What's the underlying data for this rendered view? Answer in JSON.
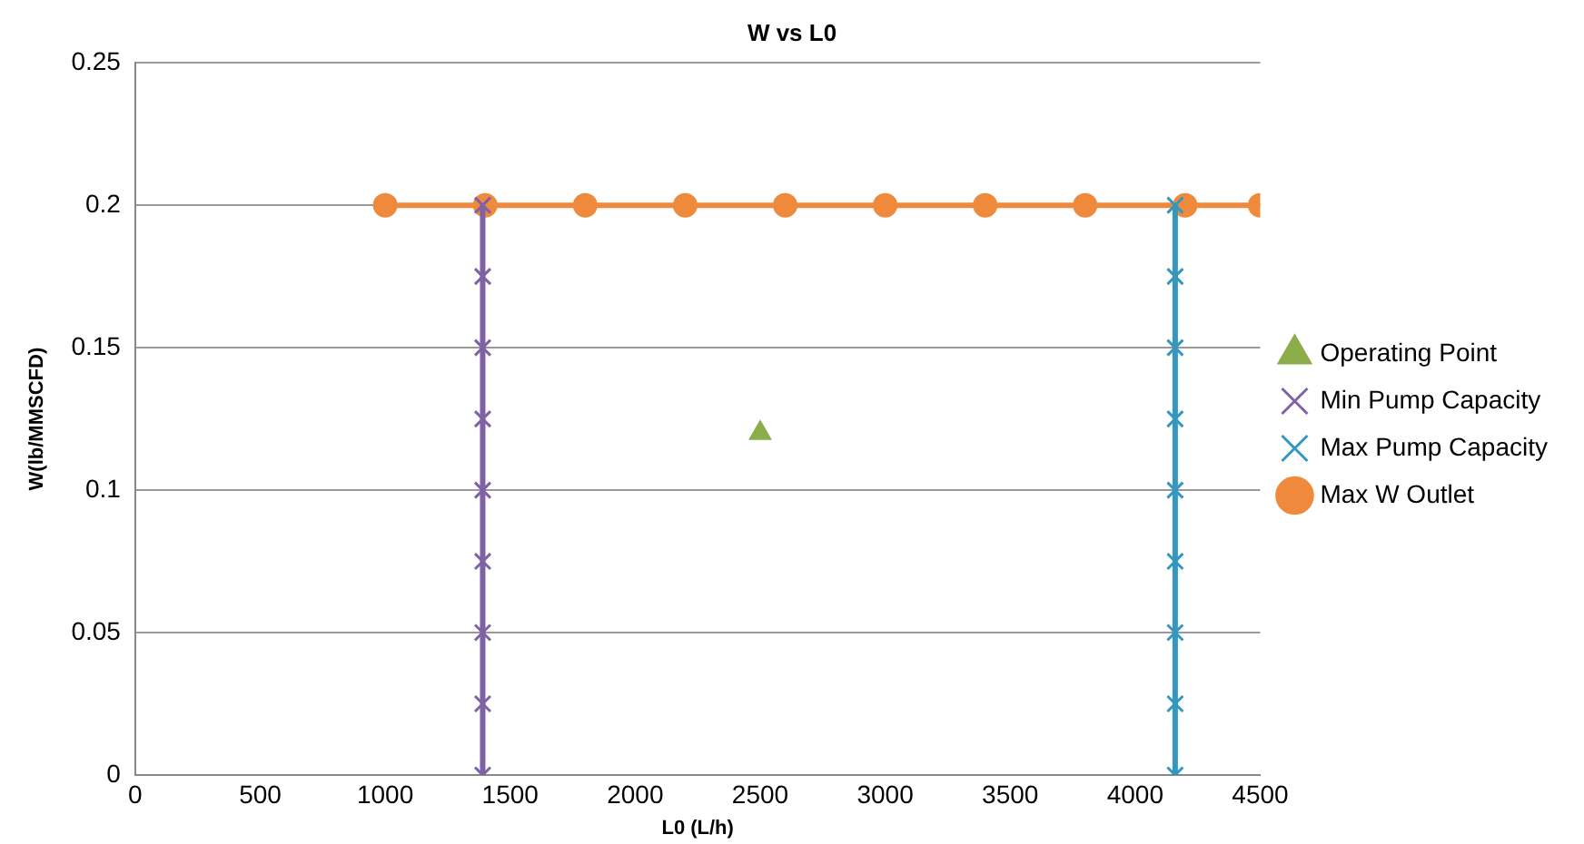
{
  "chart_data": {
    "type": "line",
    "title": "W vs L0",
    "xlabel": "L0 (L/h)",
    "ylabel": "W(lb/MMSCFD)",
    "xlim": [
      0,
      4500
    ],
    "xticks": [
      0,
      500,
      1000,
      1500,
      2000,
      2500,
      3000,
      3500,
      4000,
      4500
    ],
    "ylim": [
      0,
      0.25
    ],
    "yticks": [
      0,
      0.05,
      0.1,
      0.15,
      0.2,
      0.25
    ],
    "grid": "y",
    "legend": "right",
    "series": [
      {
        "name": "Operating Point",
        "type": "scatter",
        "marker": "triangle",
        "color": "#8bad4a",
        "x": [
          2500
        ],
        "values": [
          0.12
        ]
      },
      {
        "name": "Min Pump Capacity",
        "marker": "cross",
        "color": "#7f62a3",
        "x": [
          1390,
          1390,
          1390,
          1390,
          1390,
          1390,
          1390,
          1390,
          1390
        ],
        "values": [
          0,
          0.025,
          0.05,
          0.075,
          0.1,
          0.125,
          0.15,
          0.175,
          0.2
        ]
      },
      {
        "name": "Max Pump Capacity",
        "marker": "cross",
        "color": "#3497bf",
        "x": [
          4160,
          4160,
          4160,
          4160,
          4160,
          4160,
          4160,
          4160,
          4160
        ],
        "values": [
          0,
          0.025,
          0.05,
          0.075,
          0.1,
          0.125,
          0.15,
          0.175,
          0.2
        ]
      },
      {
        "name": "Max W Outlet",
        "marker": "circle",
        "color": "#ef8a3c",
        "x": [
          1000,
          1400,
          1800,
          2200,
          2600,
          3000,
          3400,
          3800,
          4200,
          4500
        ],
        "values": [
          0.2,
          0.2,
          0.2,
          0.2,
          0.2,
          0.2,
          0.2,
          0.2,
          0.2,
          0.2
        ]
      }
    ]
  }
}
